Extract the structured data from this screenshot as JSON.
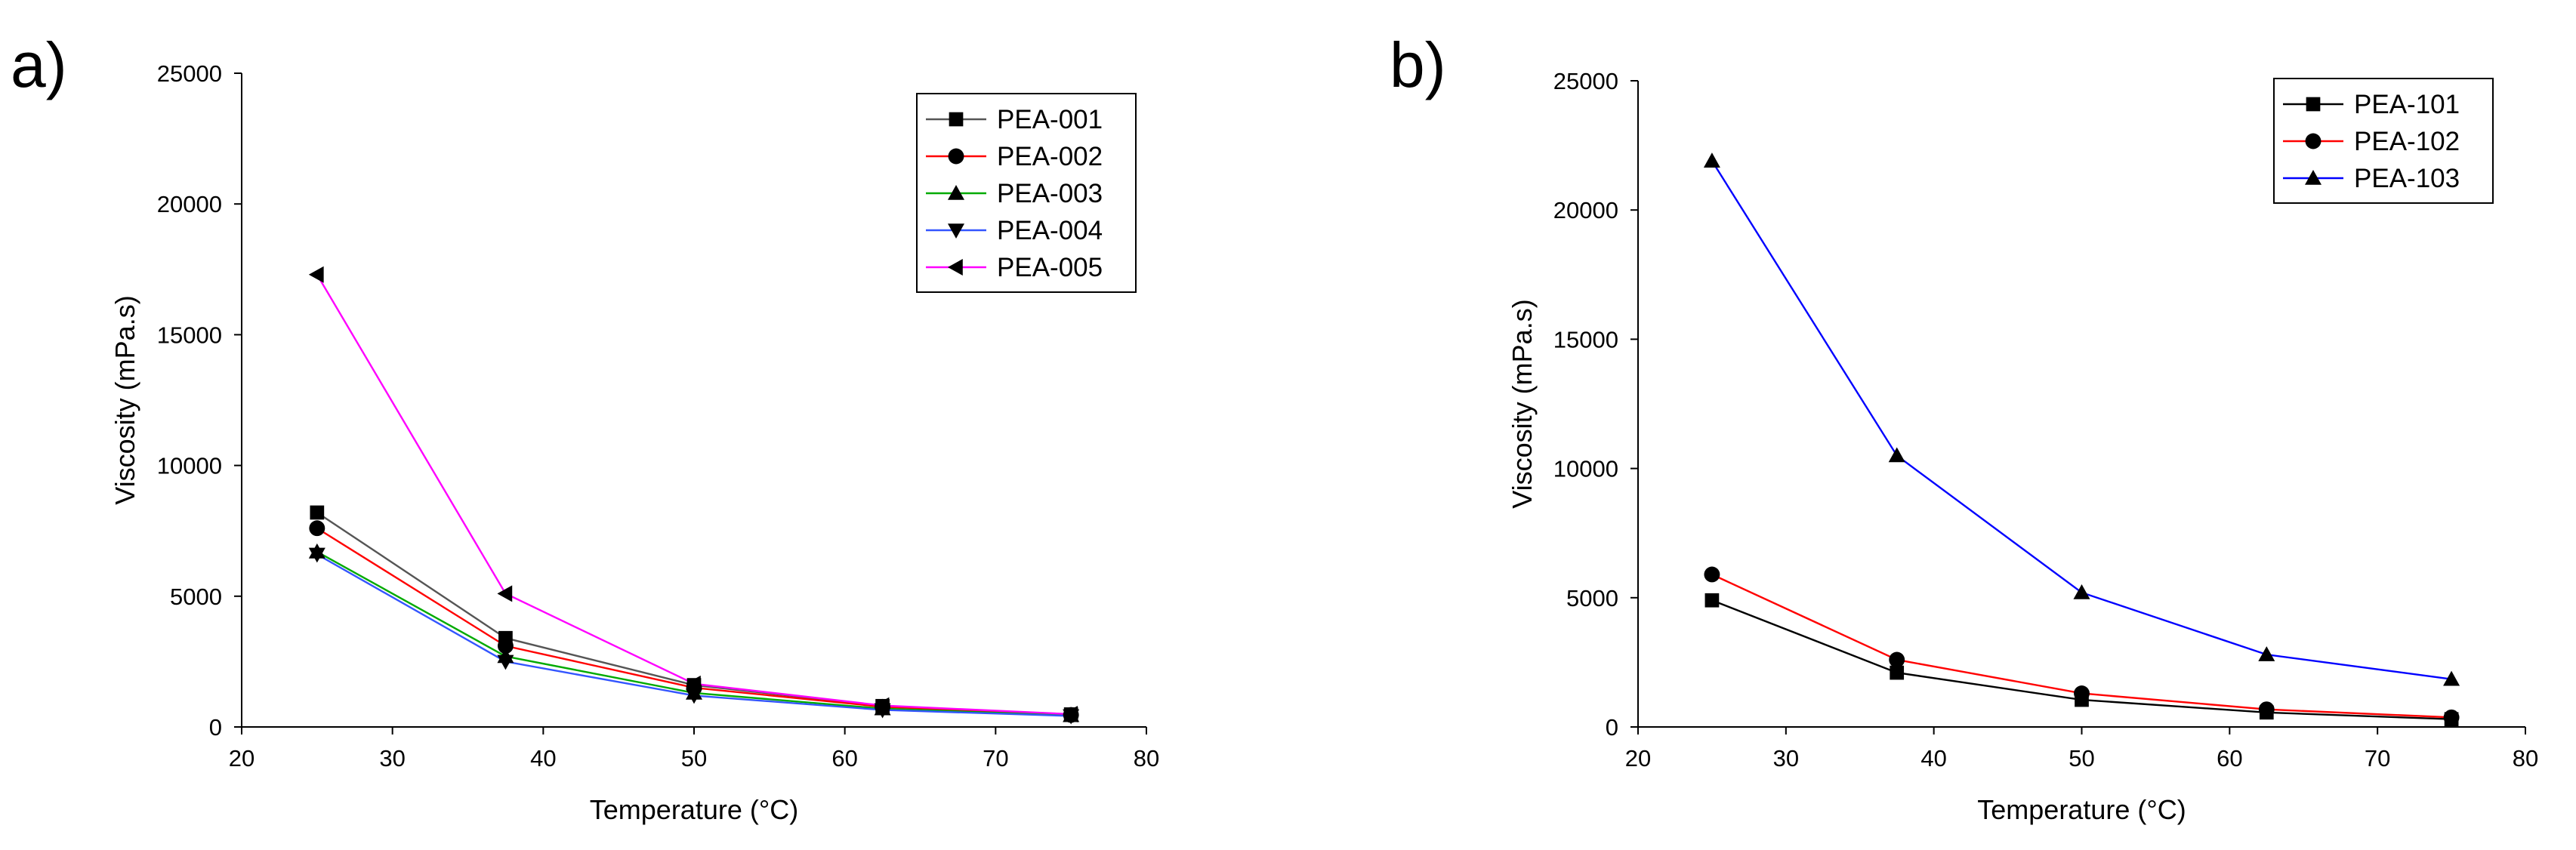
{
  "chart_data": [
    {
      "panel_label": "a)",
      "type": "line",
      "title": "",
      "xlabel": "Temperature (°C)",
      "ylabel": "Viscosity (mPa.s)",
      "xlim": [
        20,
        80
      ],
      "ylim": [
        0,
        25000
      ],
      "xticks": [
        20,
        30,
        40,
        50,
        60,
        70,
        80
      ],
      "yticks": [
        0,
        5000,
        10000,
        15000,
        20000,
        25000
      ],
      "legend_position": "top-right",
      "x": [
        25,
        37.5,
        50,
        62.5,
        75
      ],
      "series": [
        {
          "name": "PEA-001",
          "color": "#000000",
          "line_color": "#555555",
          "marker": "square",
          "values": [
            8200,
            3400,
            1600,
            800,
            480
          ]
        },
        {
          "name": "PEA-002",
          "color": "#000000",
          "line_color": "#ff0000",
          "marker": "circle",
          "values": [
            7600,
            3100,
            1500,
            770,
            460
          ]
        },
        {
          "name": "PEA-003",
          "color": "#000000",
          "line_color": "#00aa00",
          "marker": "triangle",
          "values": [
            6700,
            2700,
            1300,
            700,
            440
          ]
        },
        {
          "name": "PEA-004",
          "color": "#000000",
          "line_color": "#3355ff",
          "marker": "triangle-down",
          "values": [
            6600,
            2500,
            1200,
            650,
            420
          ]
        },
        {
          "name": "PEA-005",
          "color": "#000000",
          "line_color": "#ff00ff",
          "marker": "triangle-left",
          "values": [
            17300,
            5100,
            1650,
            820,
            490
          ]
        }
      ]
    },
    {
      "panel_label": "b)",
      "type": "line",
      "title": "",
      "xlabel": "Temperature (°C)",
      "ylabel": "Viscosity (mPa.s)",
      "xlim": [
        20,
        80
      ],
      "ylim": [
        0,
        25000
      ],
      "xticks": [
        20,
        30,
        40,
        50,
        60,
        70,
        80
      ],
      "yticks": [
        0,
        5000,
        10000,
        15000,
        20000,
        25000
      ],
      "legend_position": "top-right",
      "x": [
        25,
        37.5,
        50,
        62.5,
        75
      ],
      "series": [
        {
          "name": "PEA-101",
          "color": "#000000",
          "line_color": "#000000",
          "marker": "square",
          "values": [
            4900,
            2100,
            1050,
            560,
            300
          ]
        },
        {
          "name": "PEA-102",
          "color": "#000000",
          "line_color": "#ff0000",
          "marker": "circle",
          "values": [
            5900,
            2600,
            1300,
            680,
            370
          ]
        },
        {
          "name": "PEA-103",
          "color": "#000000",
          "line_color": "#0000ff",
          "marker": "triangle",
          "values": [
            21900,
            10500,
            5200,
            2800,
            1850
          ]
        }
      ]
    }
  ]
}
